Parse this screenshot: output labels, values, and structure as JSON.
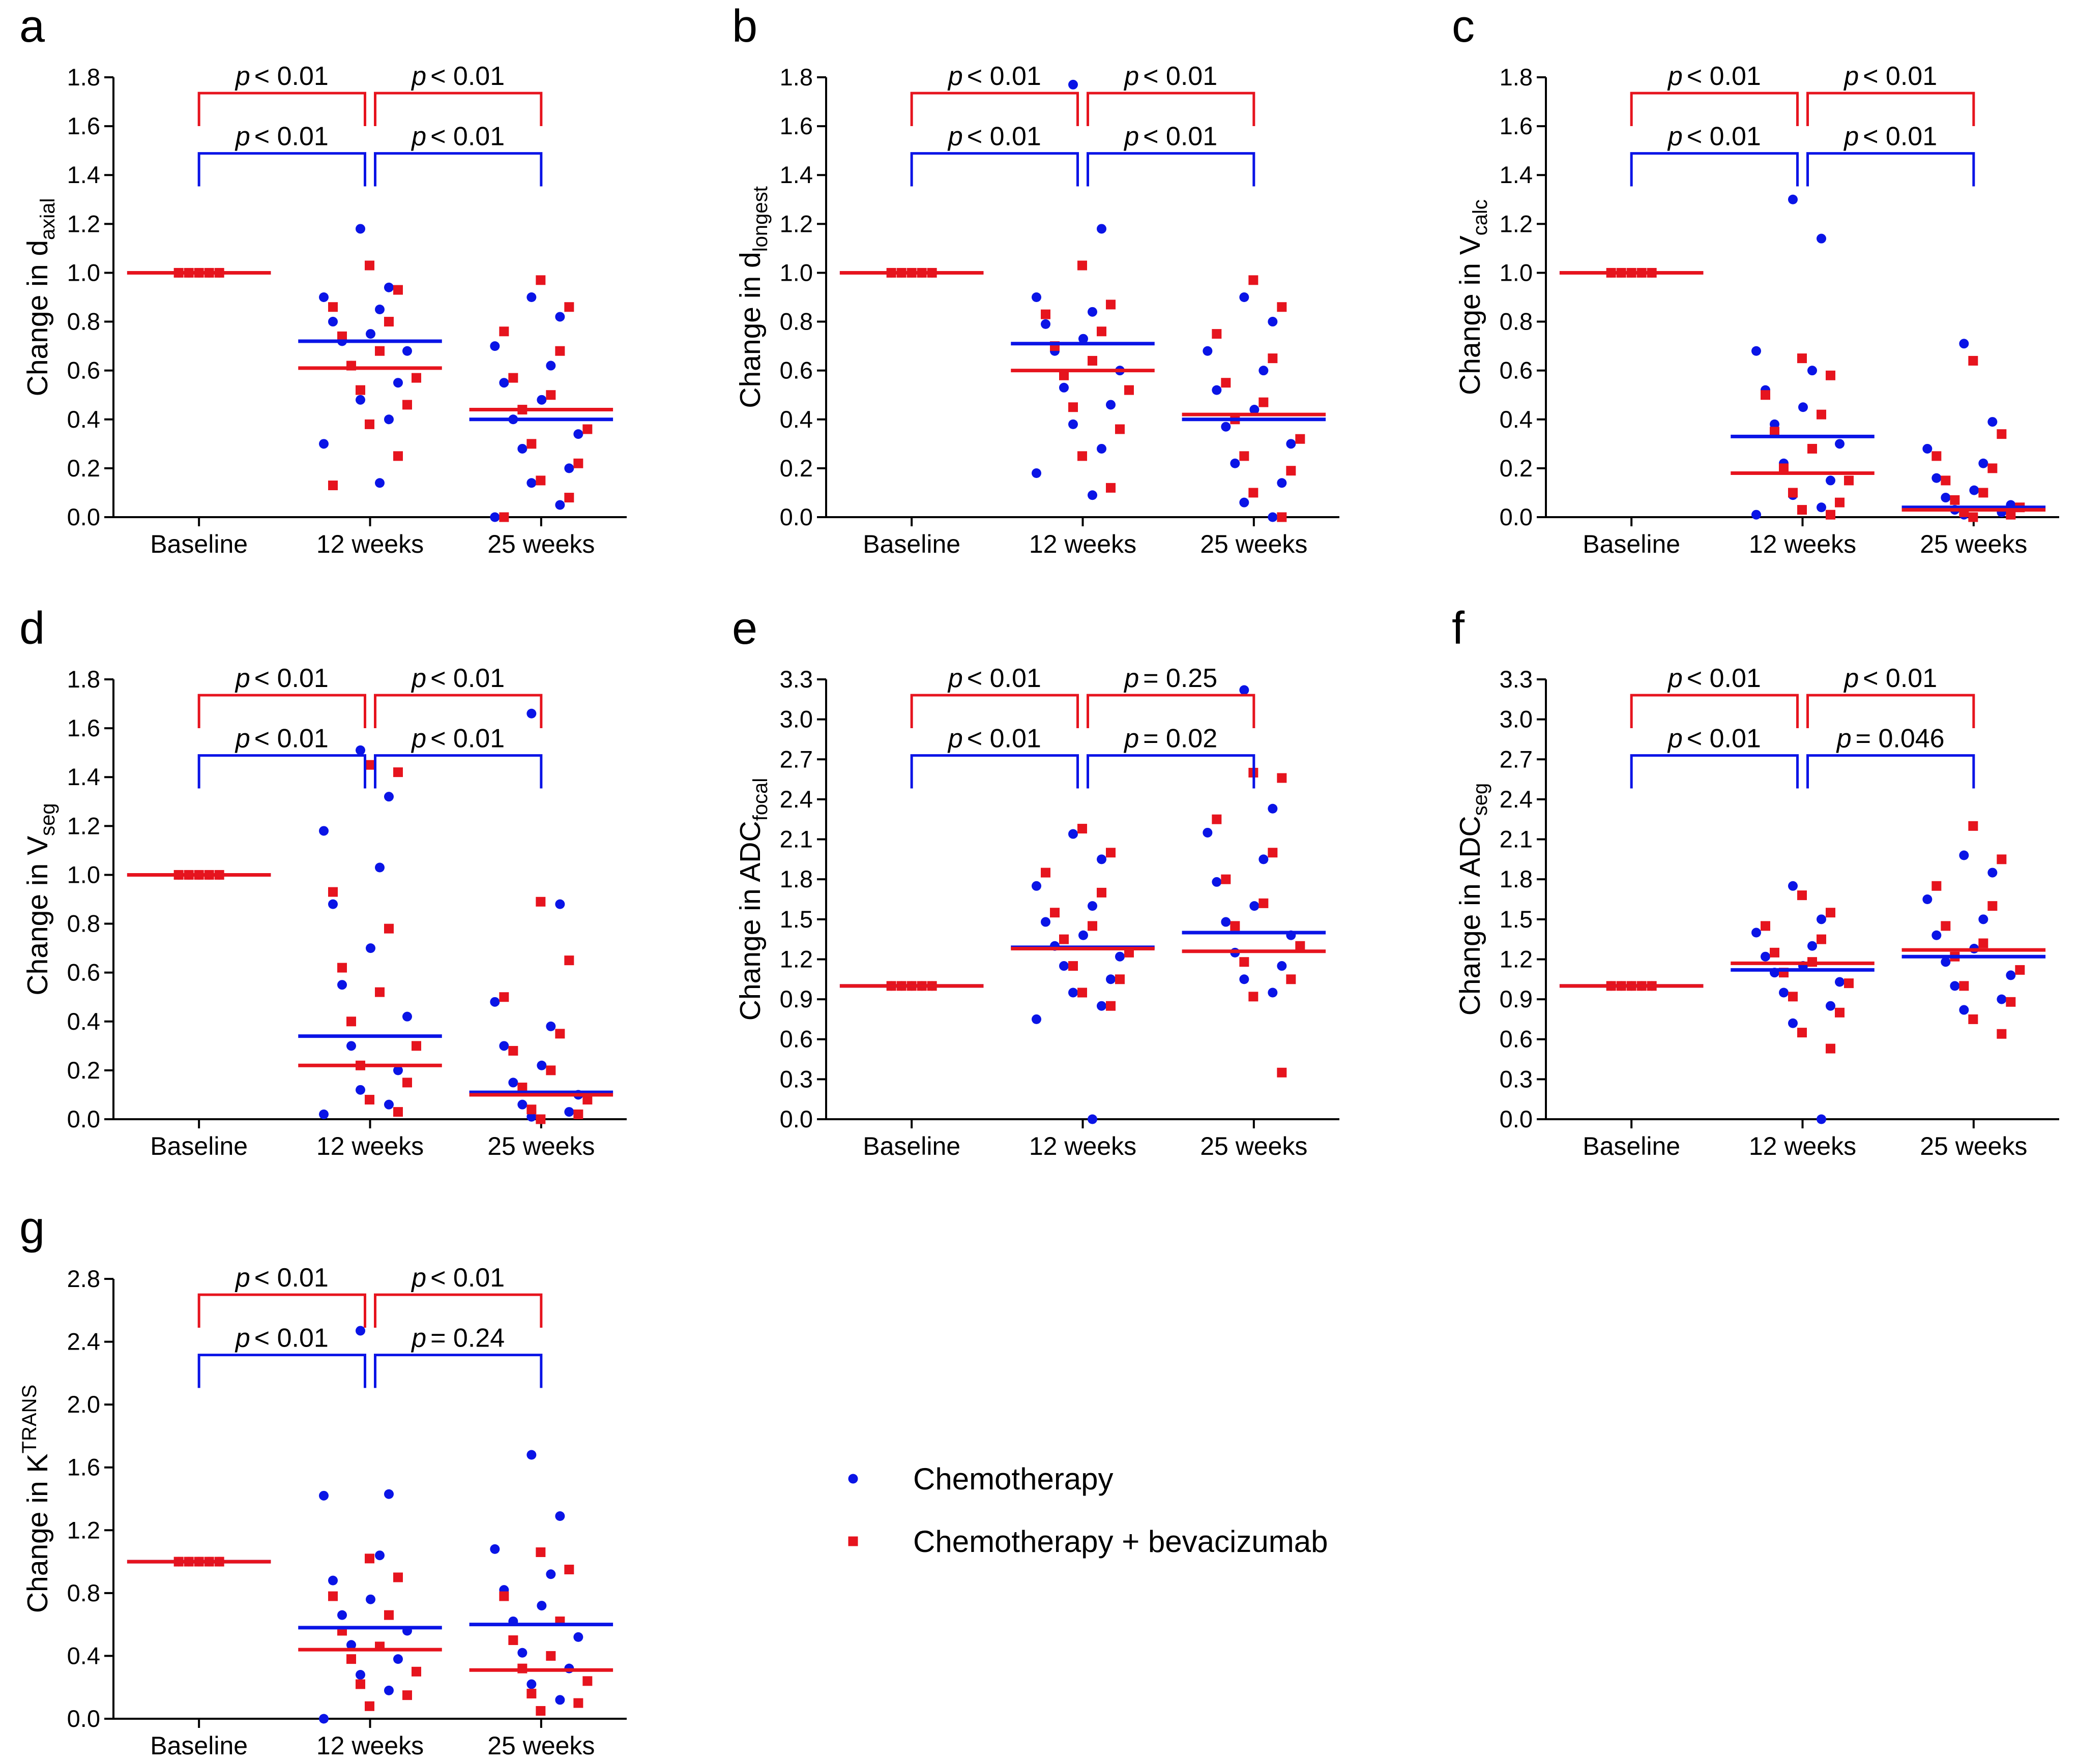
{
  "legend": [
    {
      "name": "Chemotherapy",
      "color": "#0a14e6",
      "marker": "circle"
    },
    {
      "name": "Chemotherapy + bevacizumab",
      "color": "#e6141e",
      "marker": "square"
    }
  ],
  "chart_data": [
    {
      "type": "dotplot",
      "panel": "a",
      "ylabel": "Change in d",
      "ylabel_sub": "axial",
      "categories": [
        "Baseline",
        "12 weeks",
        "25 weeks"
      ],
      "ylim": [
        0,
        1.8
      ],
      "yticks": [
        {
          "value": 0,
          "label": "0.0"
        },
        0.2,
        0.4,
        0.6,
        0.8,
        {
          "value": 1,
          "label": "1.0"
        },
        1.2,
        1.4,
        1.6,
        1.8
      ],
      "series": [
        {
          "means": [
            1,
            0.72,
            0.4
          ],
          "values": [
            [
              1,
              1,
              1,
              1,
              1
            ],
            [
              1.18,
              0.94,
              0.9,
              0.85,
              0.8,
              0.75,
              0.72,
              0.68,
              0.62,
              0.55,
              0.48,
              0.4,
              0.3,
              0.14
            ],
            [
              0.9,
              0.82,
              0.7,
              0.62,
              0.55,
              0.48,
              0.4,
              0.34,
              0.28,
              0.2,
              0.14,
              0.05,
              0
            ]
          ],
          "p_values": [
            {
              "symbol": "p",
              "text": "< 0.01"
            },
            {
              "symbol": "p",
              "text": "< 0.01"
            }
          ]
        },
        {
          "means": [
            1,
            0.61,
            0.44
          ],
          "values": [
            [
              1,
              1,
              1,
              1,
              1
            ],
            [
              1.03,
              0.93,
              0.86,
              0.8,
              0.74,
              0.68,
              0.62,
              0.57,
              0.52,
              0.46,
              0.38,
              0.25,
              0.13
            ],
            [
              0.97,
              0.86,
              0.76,
              0.68,
              0.57,
              0.5,
              0.44,
              0.36,
              0.3,
              0.22,
              0.15,
              0.08,
              0
            ]
          ],
          "p_values": [
            {
              "symbol": "p",
              "text": "< 0.01"
            },
            {
              "symbol": "p",
              "text": "< 0.01"
            }
          ]
        }
      ]
    },
    {
      "type": "dotplot",
      "panel": "b",
      "ylabel": "Change in d",
      "ylabel_sub": "longest",
      "categories": [
        "Baseline",
        "12 weeks",
        "25 weeks"
      ],
      "ylim": [
        0,
        1.8
      ],
      "yticks": [
        {
          "value": 0,
          "label": "0.0"
        },
        0.2,
        0.4,
        0.6,
        0.8,
        {
          "value": 1,
          "label": "1.0"
        },
        1.2,
        1.4,
        1.6,
        1.8
      ],
      "series": [
        {
          "means": [
            1,
            0.71,
            0.4
          ],
          "values": [
            [
              1,
              1,
              1,
              1,
              1
            ],
            [
              1.77,
              1.18,
              0.9,
              0.84,
              0.79,
              0.73,
              0.68,
              0.6,
              0.53,
              0.46,
              0.38,
              0.28,
              0.18,
              0.09
            ],
            [
              0.9,
              0.8,
              0.68,
              0.6,
              0.52,
              0.44,
              0.37,
              0.3,
              0.22,
              0.14,
              0.06,
              0
            ]
          ],
          "p_values": [
            {
              "symbol": "p",
              "text": "< 0.01"
            },
            {
              "symbol": "p",
              "text": "< 0.01"
            }
          ]
        },
        {
          "means": [
            1,
            0.6,
            0.42
          ],
          "values": [
            [
              1,
              1,
              1,
              1,
              1
            ],
            [
              1.03,
              0.87,
              0.83,
              0.76,
              0.7,
              0.64,
              0.58,
              0.52,
              0.45,
              0.36,
              0.25,
              0.12
            ],
            [
              0.97,
              0.86,
              0.75,
              0.65,
              0.55,
              0.47,
              0.4,
              0.32,
              0.25,
              0.19,
              0.1,
              0
            ]
          ],
          "p_values": [
            {
              "symbol": "p",
              "text": "< 0.01"
            },
            {
              "symbol": "p",
              "text": "< 0.01"
            }
          ]
        }
      ]
    },
    {
      "type": "dotplot",
      "panel": "c",
      "ylabel": "Change in V",
      "ylabel_sub": "calc",
      "categories": [
        "Baseline",
        "12 weeks",
        "25 weeks"
      ],
      "ylim": [
        0,
        1.8
      ],
      "yticks": [
        {
          "value": 0,
          "label": "0.0"
        },
        0.2,
        0.4,
        0.6,
        0.8,
        {
          "value": 1,
          "label": "1.0"
        },
        1.2,
        1.4,
        1.6,
        1.8
      ],
      "series": [
        {
          "means": [
            1,
            0.33,
            0.04
          ],
          "values": [
            [
              1,
              1,
              1,
              1,
              1
            ],
            [
              1.3,
              1.14,
              0.68,
              0.6,
              0.52,
              0.45,
              0.38,
              0.3,
              0.22,
              0.15,
              0.09,
              0.04,
              0.01
            ],
            [
              0.71,
              0.39,
              0.28,
              0.22,
              0.16,
              0.11,
              0.08,
              0.05,
              0.03,
              0.02,
              0.01
            ]
          ],
          "p_values": [
            {
              "symbol": "p",
              "text": "< 0.01"
            },
            {
              "symbol": "p",
              "text": "< 0.01"
            }
          ]
        },
        {
          "means": [
            1,
            0.18,
            0.03
          ],
          "values": [
            [
              1,
              1,
              1,
              1,
              1
            ],
            [
              0.65,
              0.58,
              0.5,
              0.42,
              0.35,
              0.28,
              0.2,
              0.15,
              0.1,
              0.06,
              0.03,
              0.01
            ],
            [
              0.64,
              0.34,
              0.25,
              0.2,
              0.15,
              0.1,
              0.07,
              0.04,
              0.02,
              0.01,
              0
            ]
          ],
          "p_values": [
            {
              "symbol": "p",
              "text": "< 0.01"
            },
            {
              "symbol": "p",
              "text": "< 0.01"
            }
          ]
        }
      ]
    },
    {
      "type": "dotplot",
      "panel": "d",
      "ylabel": "Change in V",
      "ylabel_sub": "seg",
      "categories": [
        "Baseline",
        "12 weeks",
        "25 weeks"
      ],
      "ylim": [
        0,
        1.8
      ],
      "yticks": [
        {
          "value": 0,
          "label": "0.0"
        },
        0.2,
        0.4,
        0.6,
        0.8,
        {
          "value": 1,
          "label": "1.0"
        },
        1.2,
        1.4,
        1.6,
        1.8
      ],
      "series": [
        {
          "means": [
            1,
            0.34,
            0.11
          ],
          "values": [
            [
              1,
              1,
              1,
              1,
              1
            ],
            [
              1.51,
              1.32,
              1.18,
              1.03,
              0.88,
              0.7,
              0.55,
              0.42,
              0.3,
              0.2,
              0.12,
              0.06,
              0.02
            ],
            [
              1.66,
              0.88,
              0.48,
              0.38,
              0.3,
              0.22,
              0.15,
              0.1,
              0.06,
              0.03,
              0.01
            ]
          ],
          "p_values": [
            {
              "symbol": "p",
              "text": "< 0.01"
            },
            {
              "symbol": "p",
              "text": "< 0.01"
            }
          ]
        },
        {
          "means": [
            1,
            0.22,
            0.1
          ],
          "values": [
            [
              1,
              1,
              1,
              1,
              1
            ],
            [
              1.45,
              1.42,
              0.93,
              0.78,
              0.62,
              0.52,
              0.4,
              0.3,
              0.22,
              0.15,
              0.08,
              0.03
            ],
            [
              0.89,
              0.65,
              0.5,
              0.35,
              0.28,
              0.2,
              0.13,
              0.08,
              0.04,
              0.02,
              0
            ]
          ],
          "p_values": [
            {
              "symbol": "p",
              "text": "< 0.01"
            },
            {
              "symbol": "p",
              "text": "< 0.01"
            }
          ]
        }
      ]
    },
    {
      "type": "dotplot",
      "panel": "e",
      "ylabel": "Change in ADC",
      "ylabel_sub": "focal",
      "categories": [
        "Baseline",
        "12 weeks",
        "25 weeks"
      ],
      "ylim": [
        0,
        3.3
      ],
      "yticks": [
        {
          "value": 0,
          "label": "0.0"
        },
        0.3,
        0.6,
        0.9,
        1.2,
        1.5,
        1.8,
        2.1,
        2.4,
        2.7,
        {
          "value": 3,
          "label": "3.0"
        },
        3.3
      ],
      "series": [
        {
          "means": [
            1,
            1.29,
            1.4
          ],
          "values": [
            [
              1,
              1,
              1,
              1,
              1
            ],
            [
              2.14,
              1.95,
              1.75,
              1.6,
              1.48,
              1.38,
              1.3,
              1.22,
              1.15,
              1.05,
              0.95,
              0.85,
              0.75,
              0
            ],
            [
              3.22,
              2.33,
              2.15,
              1.95,
              1.78,
              1.6,
              1.48,
              1.38,
              1.25,
              1.15,
              1.05,
              0.95
            ]
          ],
          "p_values": [
            {
              "symbol": "p",
              "text": "< 0.01"
            },
            {
              "symbol": "p",
              "text": "= 0.02"
            }
          ]
        },
        {
          "means": [
            1,
            1.28,
            1.26
          ],
          "values": [
            [
              1,
              1,
              1,
              1,
              1
            ],
            [
              2.18,
              2.0,
              1.85,
              1.7,
              1.55,
              1.45,
              1.35,
              1.25,
              1.15,
              1.05,
              0.95,
              0.85
            ],
            [
              2.6,
              2.56,
              2.25,
              2.0,
              1.8,
              1.62,
              1.45,
              1.3,
              1.18,
              1.05,
              0.92,
              0.35
            ]
          ],
          "p_values": [
            {
              "symbol": "p",
              "text": "< 0.01"
            },
            {
              "symbol": "p",
              "text": "= 0.25"
            }
          ]
        }
      ]
    },
    {
      "type": "dotplot",
      "panel": "f",
      "ylabel": "Change in ADC",
      "ylabel_sub": "seg",
      "categories": [
        "Baseline",
        "12 weeks",
        "25 weeks"
      ],
      "ylim": [
        0,
        3.3
      ],
      "yticks": [
        {
          "value": 0,
          "label": "0.0"
        },
        0.3,
        0.6,
        0.9,
        1.2,
        1.5,
        1.8,
        2.1,
        2.4,
        2.7,
        {
          "value": 3,
          "label": "3.0"
        },
        3.3
      ],
      "series": [
        {
          "means": [
            1,
            1.12,
            1.22
          ],
          "values": [
            [
              1,
              1,
              1,
              1,
              1
            ],
            [
              1.75,
              1.5,
              1.4,
              1.3,
              1.22,
              1.15,
              1.1,
              1.03,
              0.95,
              0.85,
              0.72,
              0
            ],
            [
              1.98,
              1.85,
              1.65,
              1.5,
              1.38,
              1.28,
              1.18,
              1.08,
              1.0,
              0.9,
              0.82
            ]
          ],
          "p_values": [
            {
              "symbol": "p",
              "text": "< 0.01"
            },
            {
              "symbol": "p",
              "text": "= 0.046"
            }
          ]
        },
        {
          "means": [
            1,
            1.17,
            1.27
          ],
          "values": [
            [
              1,
              1,
              1,
              1,
              1
            ],
            [
              1.68,
              1.55,
              1.45,
              1.35,
              1.25,
              1.18,
              1.1,
              1.02,
              0.92,
              0.8,
              0.65,
              0.53
            ],
            [
              2.2,
              1.95,
              1.75,
              1.6,
              1.45,
              1.32,
              1.22,
              1.12,
              1.0,
              0.88,
              0.75,
              0.64
            ]
          ],
          "p_values": [
            {
              "symbol": "p",
              "text": "< 0.01"
            },
            {
              "symbol": "p",
              "text": "< 0.01"
            }
          ]
        }
      ]
    },
    {
      "type": "dotplot",
      "panel": "g",
      "ylabel": "Change in K",
      "ylabel_sup": "TRANS",
      "categories": [
        "Baseline",
        "12 weeks",
        "25 weeks"
      ],
      "ylim": [
        0,
        2.8
      ],
      "yticks": [
        {
          "value": 0,
          "label": "0.0"
        },
        0.4,
        0.8,
        1.2,
        1.6,
        {
          "value": 2,
          "label": "2.0"
        },
        2.4,
        2.8
      ],
      "series": [
        {
          "means": [
            1,
            0.58,
            0.6
          ],
          "values": [
            [
              1,
              1,
              1,
              1,
              1
            ],
            [
              2.47,
              1.43,
              1.42,
              1.04,
              0.88,
              0.76,
              0.66,
              0.56,
              0.47,
              0.38,
              0.28,
              0.18,
              0
            ],
            [
              1.68,
              1.29,
              1.08,
              0.92,
              0.82,
              0.72,
              0.62,
              0.52,
              0.42,
              0.32,
              0.22,
              0.12
            ]
          ],
          "p_values": [
            {
              "symbol": "p",
              "text": "< 0.01"
            },
            {
              "symbol": "p",
              "text": "= 0.24"
            }
          ]
        },
        {
          "means": [
            1,
            0.44,
            0.31
          ],
          "values": [
            [
              1,
              1,
              1,
              1,
              1
            ],
            [
              1.02,
              0.9,
              0.78,
              0.66,
              0.56,
              0.46,
              0.38,
              0.3,
              0.22,
              0.15,
              0.08
            ],
            [
              1.06,
              0.95,
              0.78,
              0.62,
              0.5,
              0.4,
              0.32,
              0.24,
              0.16,
              0.1,
              0.05
            ]
          ],
          "p_values": [
            {
              "symbol": "p",
              "text": "< 0.01"
            },
            {
              "symbol": "p",
              "text": "< 0.01"
            }
          ]
        }
      ]
    }
  ]
}
